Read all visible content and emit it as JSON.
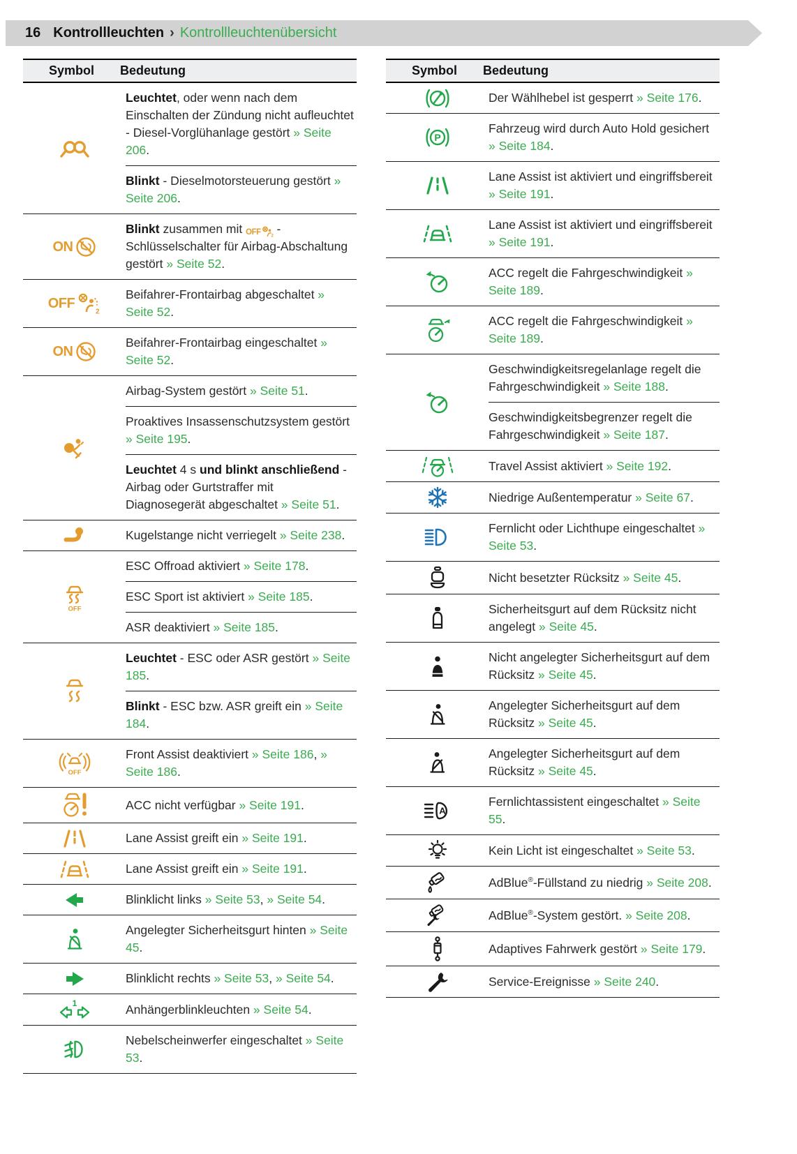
{
  "page": {
    "number": "16",
    "section": "Kontrollleuchten",
    "separator": "›",
    "subsection": "Kontrollleuchtenübersicht"
  },
  "colors": {
    "amber": "#E49C2F",
    "green": "#22A74A",
    "link_green": "#3BAC50",
    "blue": "#1F73B4",
    "header_bar": "#D2D2D2",
    "table_head_bg": "#EDEEF0",
    "rule": "#1C1C1C"
  },
  "icon_labels": {
    "on": "ON",
    "off": "OFF",
    "one": "1",
    "two": "2",
    "a": "A",
    "p": "P"
  },
  "tables": {
    "headers": {
      "symbol": "Symbol",
      "meaning": "Bedeutung"
    },
    "left": {
      "groups": [
        {
          "icon": "glow-plug-icon",
          "c": "amber",
          "rows": [
            [
              {
                "t": "Leuchtet",
                "k": "b"
              },
              {
                "t": ", oder wenn nach dem Einschalten der Zündung nicht aufleuchtet - Diesel-Vorglühanlage gestört "
              },
              {
                "t": "» Seite 206",
                "k": "l"
              },
              {
                "t": "."
              }
            ],
            [
              {
                "t": "Blinkt",
                "k": "b"
              },
              {
                "t": " - Dieselmotorsteuerung gestört "
              },
              {
                "t": "» Seite 206",
                "k": "l"
              },
              {
                "t": "."
              }
            ]
          ]
        },
        {
          "icon": "airbag-on-icon",
          "c": "amber",
          "rows": [
            [
              {
                "t": "Blinkt",
                "k": "b"
              },
              {
                "t": " zusammen mit "
              },
              {
                "t": "airbag-off-inline-icon",
                "k": "i"
              },
              {
                "t": " - Schlüsselschalter für Airbag-Abschaltung gestört "
              },
              {
                "t": "» Seite 52",
                "k": "l"
              },
              {
                "t": "."
              }
            ]
          ]
        },
        {
          "icon": "airbag-off2-icon",
          "c": "amber",
          "rows": [
            [
              {
                "t": "Beifahrer-Frontairbag abgeschaltet "
              },
              {
                "t": "» Seite 52",
                "k": "l"
              },
              {
                "t": "."
              }
            ]
          ]
        },
        {
          "icon": "airbag-on-icon",
          "c": "amber",
          "rows": [
            [
              {
                "t": "Beifahrer-Frontairbag eingeschaltet "
              },
              {
                "t": "» Seite 52",
                "k": "l"
              },
              {
                "t": "."
              }
            ]
          ]
        },
        {
          "icon": "airbag-person-icon",
          "c": "amber",
          "rows": [
            [
              {
                "t": "Airbag-System gestört "
              },
              {
                "t": "» Seite 51",
                "k": "l"
              },
              {
                "t": "."
              }
            ],
            [
              {
                "t": "Proaktives Insassenschutzsystem gestört "
              },
              {
                "t": "» Seite 195",
                "k": "l"
              },
              {
                "t": "."
              }
            ],
            [
              {
                "t": "Leuchtet",
                "k": "b"
              },
              {
                "t": " 4 s "
              },
              {
                "t": "und blinkt anschließend",
                "k": "b"
              },
              {
                "t": " - Airbag oder Gurtstraffer mit Diagnosegerät abgeschaltet "
              },
              {
                "t": "» Seite 51",
                "k": "l"
              },
              {
                "t": "."
              }
            ]
          ]
        },
        {
          "icon": "tow-hitch-icon",
          "c": "amber",
          "rows": [
            [
              {
                "t": "Kugelstange nicht verriegelt "
              },
              {
                "t": "» Seite 238",
                "k": "l"
              },
              {
                "t": "."
              }
            ]
          ]
        },
        {
          "icon": "esc-off-icon",
          "c": "amber",
          "rows": [
            [
              {
                "t": "ESC Offroad aktiviert "
              },
              {
                "t": "» Seite 178",
                "k": "l"
              },
              {
                "t": "."
              }
            ],
            [
              {
                "t": "ESC Sport ist aktiviert "
              },
              {
                "t": "» Seite 185",
                "k": "l"
              },
              {
                "t": "."
              }
            ],
            [
              {
                "t": "ASR deaktiviert "
              },
              {
                "t": "» Seite 185",
                "k": "l"
              },
              {
                "t": "."
              }
            ]
          ]
        },
        {
          "icon": "esc-icon",
          "c": "amber",
          "rows": [
            [
              {
                "t": "Leuchtet",
                "k": "b"
              },
              {
                "t": " - ESC oder ASR gestört "
              },
              {
                "t": "» Seite 185",
                "k": "l"
              },
              {
                "t": "."
              }
            ],
            [
              {
                "t": "Blinkt",
                "k": "b"
              },
              {
                "t": " - ESC bzw. ASR greift ein "
              },
              {
                "t": "» Seite 184",
                "k": "l"
              },
              {
                "t": "."
              }
            ]
          ]
        },
        {
          "icon": "front-assist-off-icon",
          "c": "amber",
          "rows": [
            [
              {
                "t": "Front Assist deaktiviert "
              },
              {
                "t": "» Seite 186",
                "k": "l"
              },
              {
                "t": ", "
              },
              {
                "t": "» Seite 186",
                "k": "l"
              },
              {
                "t": "."
              }
            ]
          ]
        },
        {
          "icon": "acc-warning-icon",
          "c": "amber",
          "rows": [
            [
              {
                "t": "ACC nicht verfügbar "
              },
              {
                "t": "» Seite 191",
                "k": "l"
              },
              {
                "t": "."
              }
            ]
          ]
        },
        {
          "icon": "lane-lines-icon",
          "c": "amber",
          "rows": [
            [
              {
                "t": "Lane Assist greift ein "
              },
              {
                "t": "» Seite 191",
                "k": "l"
              },
              {
                "t": "."
              }
            ]
          ]
        },
        {
          "icon": "lane-car-icon",
          "c": "amber",
          "rows": [
            [
              {
                "t": "Lane Assist greift ein "
              },
              {
                "t": "» Seite 191",
                "k": "l"
              },
              {
                "t": "."
              }
            ]
          ]
        },
        {
          "icon": "arrow-left-icon",
          "c": "green",
          "rows": [
            [
              {
                "t": "Blinklicht links "
              },
              {
                "t": "» Seite 53",
                "k": "l"
              },
              {
                "t": ", "
              },
              {
                "t": "» Seite 54",
                "k": "l"
              },
              {
                "t": "."
              }
            ]
          ]
        },
        {
          "icon": "belt-person-icon",
          "c": "green",
          "rows": [
            [
              {
                "t": "Angelegter Sicherheitsgurt hinten "
              },
              {
                "t": "» Seite 45",
                "k": "l"
              },
              {
                "t": "."
              }
            ]
          ]
        },
        {
          "icon": "arrow-right-icon",
          "c": "green",
          "rows": [
            [
              {
                "t": "Blinklicht rechts "
              },
              {
                "t": "» Seite 53",
                "k": "l"
              },
              {
                "t": ", "
              },
              {
                "t": "» Seite 54",
                "k": "l"
              },
              {
                "t": "."
              }
            ]
          ]
        },
        {
          "icon": "trailer-blinkers-icon",
          "c": "green",
          "rows": [
            [
              {
                "t": "Anhängerblinkleuchten "
              },
              {
                "t": "» Seite 54",
                "k": "l"
              },
              {
                "t": "."
              }
            ]
          ]
        },
        {
          "icon": "fog-light-icon",
          "c": "green",
          "rows": [
            [
              {
                "t": "Nebelscheinwerfer eingeschaltet "
              },
              {
                "t": "» Seite 53",
                "k": "l"
              },
              {
                "t": "."
              }
            ]
          ]
        }
      ]
    },
    "right": {
      "groups": [
        {
          "icon": "shift-lock-icon",
          "c": "green",
          "rows": [
            [
              {
                "t": "Der Wählhebel ist gesperrt "
              },
              {
                "t": "» Seite 176",
                "k": "l"
              },
              {
                "t": "."
              }
            ]
          ]
        },
        {
          "icon": "auto-hold-icon",
          "c": "green",
          "rows": [
            [
              {
                "t": "Fahrzeug wird durch Auto Hold gesichert "
              },
              {
                "t": "» Seite 184",
                "k": "l"
              },
              {
                "t": "."
              }
            ]
          ]
        },
        {
          "icon": "lane-lines-icon",
          "c": "green",
          "rows": [
            [
              {
                "t": "Lane Assist ist aktiviert und eingriffsbereit "
              },
              {
                "t": "» Seite 191",
                "k": "l"
              },
              {
                "t": "."
              }
            ]
          ]
        },
        {
          "icon": "lane-car-icon",
          "c": "green",
          "rows": [
            [
              {
                "t": "Lane Assist ist aktiviert und eingriffsbereit "
              },
              {
                "t": "» Seite 191",
                "k": "l"
              },
              {
                "t": "."
              }
            ]
          ]
        },
        {
          "icon": "speedo-arrow-icon",
          "c": "green",
          "rows": [
            [
              {
                "t": "ACC regelt die Fahrgeschwindigkeit "
              },
              {
                "t": "» Seite 189",
                "k": "l"
              },
              {
                "t": "."
              }
            ]
          ]
        },
        {
          "icon": "car-speedo-icon",
          "c": "green",
          "rows": [
            [
              {
                "t": "ACC regelt die Fahrgeschwindigkeit "
              },
              {
                "t": "» Seite 189",
                "k": "l"
              },
              {
                "t": "."
              }
            ]
          ]
        },
        {
          "icon": "speedo-arrow-icon",
          "c": "green",
          "rows": [
            [
              {
                "t": "Geschwindigkeitsregelanlage regelt die Fahrgeschwindigkeit "
              },
              {
                "t": "» Seite 188",
                "k": "l"
              },
              {
                "t": "."
              }
            ],
            [
              {
                "t": "Geschwindigkeitsbegrenzer regelt die Fahrgeschwindigkeit "
              },
              {
                "t": "» Seite 187",
                "k": "l"
              },
              {
                "t": "."
              }
            ]
          ]
        },
        {
          "icon": "travel-assist-icon",
          "c": "green",
          "rows": [
            [
              {
                "t": "Travel Assist aktiviert "
              },
              {
                "t": "» Seite 192",
                "k": "l"
              },
              {
                "t": "."
              }
            ]
          ]
        },
        {
          "icon": "snowflake-icon",
          "c": "blue",
          "rows": [
            [
              {
                "t": "Niedrige Außentemperatur "
              },
              {
                "t": "» Seite 67",
                "k": "l"
              },
              {
                "t": "."
              }
            ]
          ]
        },
        {
          "icon": "high-beam-icon",
          "c": "blue",
          "rows": [
            [
              {
                "t": "Fernlicht oder Lichthupe eingeschaltet "
              },
              {
                "t": "» Seite 53",
                "k": "l"
              },
              {
                "t": "."
              }
            ]
          ]
        },
        {
          "icon": "seat-empty-icon",
          "c": "black",
          "rows": [
            [
              {
                "t": "Nicht besetzter Rücksitz "
              },
              {
                "t": "» Seite 45",
                "k": "l"
              },
              {
                "t": "."
              }
            ]
          ]
        },
        {
          "icon": "seat-belt-missing-icon",
          "c": "black",
          "rows": [
            [
              {
                "t": "Sicherheitsgurt auf dem Rücksitz nicht angelegt "
              },
              {
                "t": "» Seite 45",
                "k": "l"
              },
              {
                "t": "."
              }
            ]
          ]
        },
        {
          "icon": "person-icon",
          "c": "black",
          "rows": [
            [
              {
                "t": "Nicht angelegter Sicherheitsgurt auf dem Rücksitz "
              },
              {
                "t": "» Seite 45",
                "k": "l"
              },
              {
                "t": "."
              }
            ]
          ]
        },
        {
          "icon": "belt-person-icon",
          "c": "black",
          "rows": [
            [
              {
                "t": "Angelegter Sicherheitsgurt auf dem Rücksitz "
              },
              {
                "t": "» Seite 45",
                "k": "l"
              },
              {
                "t": "."
              }
            ]
          ]
        },
        {
          "icon": "belt-person-alt-icon",
          "c": "black",
          "rows": [
            [
              {
                "t": "Angelegter Sicherheitsgurt auf dem Rücksitz "
              },
              {
                "t": "» Seite 45",
                "k": "l"
              },
              {
                "t": "."
              }
            ]
          ]
        },
        {
          "icon": "high-beam-auto-icon",
          "c": "black",
          "rows": [
            [
              {
                "t": "Fernlichtassistent eingeschaltet "
              },
              {
                "t": "» Seite 55",
                "k": "l"
              },
              {
                "t": "."
              }
            ]
          ]
        },
        {
          "icon": "bulb-icon",
          "c": "black",
          "rows": [
            [
              {
                "t": "Kein Licht ist eingeschaltet "
              },
              {
                "t": "» Seite 53",
                "k": "l"
              },
              {
                "t": "."
              }
            ]
          ]
        },
        {
          "icon": "adblue-low-icon",
          "c": "black",
          "rows": [
            [
              {
                "t": "AdBlue"
              },
              {
                "t": "®",
                "k": "s"
              },
              {
                "t": "-Füllstand zu niedrig "
              },
              {
                "t": "» Seite 208",
                "k": "l"
              },
              {
                "t": "."
              }
            ]
          ]
        },
        {
          "icon": "adblue-fault-icon",
          "c": "black",
          "rows": [
            [
              {
                "t": "AdBlue"
              },
              {
                "t": "®",
                "k": "s"
              },
              {
                "t": "-System gestört. "
              },
              {
                "t": "» Seite 208",
                "k": "l"
              },
              {
                "t": "."
              }
            ]
          ]
        },
        {
          "icon": "damper-icon",
          "c": "black",
          "rows": [
            [
              {
                "t": "Adaptives Fahrwerk gestört "
              },
              {
                "t": "» Seite 179",
                "k": "l"
              },
              {
                "t": "."
              }
            ]
          ]
        },
        {
          "icon": "wrench-icon",
          "c": "black",
          "rows": [
            [
              {
                "t": "Service-Ereignisse "
              },
              {
                "t": "» Seite 240",
                "k": "l"
              },
              {
                "t": "."
              }
            ]
          ]
        }
      ]
    }
  }
}
